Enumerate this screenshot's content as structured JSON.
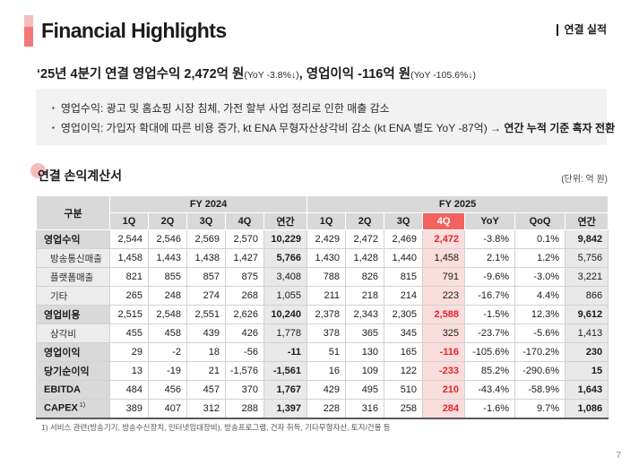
{
  "header": {
    "title": "Financial Highlights",
    "tag": "연결 실적"
  },
  "summary": {
    "headline": {
      "part1": "‘25년 4분기 연결 영업수익 2,472억 원",
      "part1_note": "(YoY -3.8%↓)",
      "separator": ", ",
      "part2": "영업이익 -116억 원",
      "part2_note": "(YoY -105.6%↓)"
    },
    "bullets": [
      {
        "text": "영업수익: 광고 및 홈쇼핑 시장 침체, 가전 할부 사업 정리로 인한 매출 감소",
        "bold_tail": ""
      },
      {
        "text": "영업이익: 가입자 확대에 따른 비용 증가, kt ENA 무형자산상각비 감소 (kt ENA 별도 YoY -87억) → ",
        "bold_tail": "연간 누적 기준 흑자 전환"
      }
    ]
  },
  "table": {
    "section_title": "연결 손익계산서",
    "unit_label": "(단위: 억 원)",
    "col_group_label": "구분",
    "groups": [
      {
        "label": "FY 2024",
        "cols": [
          "1Q",
          "2Q",
          "3Q",
          "4Q",
          "연간"
        ]
      },
      {
        "label": "FY 2025",
        "cols": [
          "1Q",
          "2Q",
          "3Q",
          "4Q",
          "YoY",
          "QoQ",
          "연간"
        ],
        "highlight_col": "4Q"
      }
    ],
    "rows": [
      {
        "label": "영업수익",
        "type": "main",
        "values": [
          "2,544",
          "2,546",
          "2,569",
          "2,570",
          "10,229",
          "2,429",
          "2,472",
          "2,469",
          "2,472",
          "-3.8%",
          "0.1%",
          "9,842"
        ]
      },
      {
        "label": "방송통신매출",
        "type": "sub",
        "bold_cells": [
          4
        ],
        "values": [
          "1,458",
          "1,443",
          "1,438",
          "1,427",
          "5,766",
          "1,430",
          "1,428",
          "1,440",
          "1,458",
          "2.1%",
          "1.2%",
          "5,756"
        ]
      },
      {
        "label": "플랫폼매출",
        "type": "sub",
        "values": [
          "821",
          "855",
          "857",
          "875",
          "3,408",
          "788",
          "826",
          "815",
          "791",
          "-9.6%",
          "-3.0%",
          "3,221"
        ]
      },
      {
        "label": "기타",
        "type": "sub",
        "values": [
          "265",
          "248",
          "274",
          "268",
          "1,055",
          "211",
          "218",
          "214",
          "223",
          "-16.7%",
          "4.4%",
          "866"
        ]
      },
      {
        "label": "영업비용",
        "type": "main",
        "values": [
          "2,515",
          "2,548",
          "2,551",
          "2,626",
          "10,240",
          "2,378",
          "2,343",
          "2,305",
          "2,588",
          "-1.5%",
          "12.3%",
          "9,612"
        ]
      },
      {
        "label": "상각비",
        "type": "sub",
        "values": [
          "455",
          "458",
          "439",
          "426",
          "1,778",
          "378",
          "365",
          "345",
          "325",
          "-23.7%",
          "-5.6%",
          "1,413"
        ]
      },
      {
        "label": "영업이익",
        "type": "main",
        "values": [
          "29",
          "-2",
          "18",
          "-56",
          "-11",
          "51",
          "130",
          "165",
          "-116",
          "-105.6%",
          "-170.2%",
          "230"
        ]
      },
      {
        "label": "당기순이익",
        "type": "main",
        "values": [
          "13",
          "-19",
          "21",
          "-1,576",
          "-1,561",
          "16",
          "109",
          "122",
          "-233",
          "85.2%",
          "-290.6%",
          "15"
        ]
      },
      {
        "label": "EBITDA",
        "type": "main",
        "values": [
          "484",
          "456",
          "457",
          "370",
          "1,767",
          "429",
          "495",
          "510",
          "210",
          "-43.4%",
          "-58.9%",
          "1,643"
        ]
      },
      {
        "label": "CAPEX",
        "sup": "1)",
        "type": "main",
        "values": [
          "389",
          "407",
          "312",
          "288",
          "1,397",
          "228",
          "316",
          "258",
          "284",
          "-1.6%",
          "9.7%",
          "1,086"
        ]
      }
    ],
    "footnote": "1)   서비스 관련(방송기기, 방송수신장치, 인터넷임대장비), 방송프로그램, 건자 취득, 기타무형자산, 토지/건물 등"
  },
  "page_number": "7",
  "colors": {
    "accent": "#f47878",
    "accent_light": "#f6bdbd",
    "highlight_header": "#f4625f",
    "highlight_column": "#fadddd",
    "red_text": "#e42527",
    "header_gray": "#d9d9d9",
    "subrow_gray": "#ececec",
    "annual_gray": "#e9e9e9",
    "box_gray": "#f2f2f2"
  }
}
